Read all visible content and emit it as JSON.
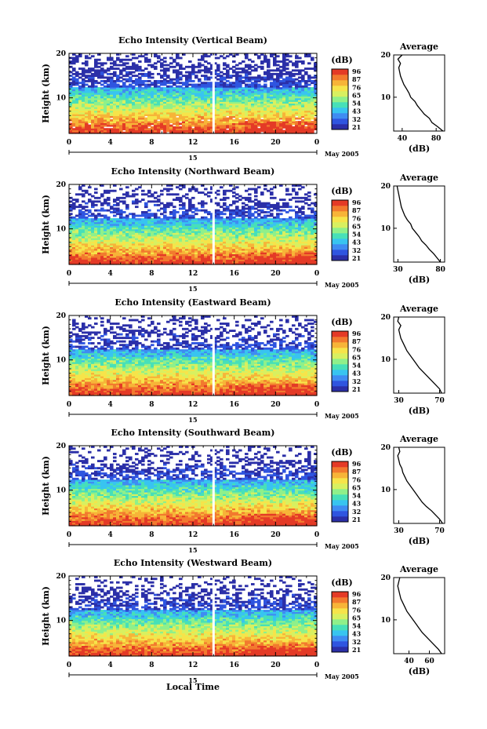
{
  "figure": {
    "xlabel": "Local Time",
    "date_label": "May 2005",
    "day_label": "15",
    "ylabel": "Height (km)",
    "avg_title": "Average",
    "avg_unit": "(dB)",
    "cb_unit": "(dB)"
  },
  "chart_data": [
    {
      "type": "heatmap",
      "title": "Echo Intensity (Vertical Beam)",
      "xlabel": "Local Time",
      "ylabel": "Height (km)",
      "x_ticks": [
        "0",
        "4",
        "8",
        "12",
        "16",
        "20",
        "0"
      ],
      "y_ticks": [
        "10",
        "20"
      ],
      "xlim": [
        0,
        24
      ],
      "ylim": [
        2,
        20
      ],
      "colorbar": {
        "label": "(dB)",
        "ticks": [
          "96",
          "87",
          "76",
          "65",
          "54",
          "43",
          "32",
          "21"
        ]
      },
      "data_gap_hour": 14,
      "average_profile": {
        "title": "Average",
        "xlabel": "(dB)",
        "x_ticks": [
          "40",
          "80"
        ],
        "y_ticks": [
          "10",
          "20"
        ],
        "xlim": [
          30,
          90
        ],
        "heights": [
          2,
          3,
          4,
          5,
          6,
          7,
          8,
          9,
          10,
          11,
          12,
          13,
          14,
          15,
          16,
          17,
          18,
          19,
          20
        ],
        "values": [
          88,
          82,
          75,
          72,
          66,
          62,
          58,
          55,
          50,
          48,
          45,
          42,
          40,
          38,
          37,
          36,
          38,
          35,
          40
        ]
      }
    },
    {
      "type": "heatmap",
      "title": "Echo Intensity (Northward Beam)",
      "xlabel": "Local Time",
      "ylabel": "Height (km)",
      "x_ticks": [
        "0",
        "4",
        "8",
        "12",
        "16",
        "20",
        "0"
      ],
      "y_ticks": [
        "10",
        "20"
      ],
      "xlim": [
        0,
        24
      ],
      "ylim": [
        2,
        20
      ],
      "colorbar": {
        "label": "(dB)",
        "ticks": [
          "96",
          "87",
          "76",
          "65",
          "54",
          "43",
          "32",
          "21"
        ]
      },
      "data_gap_hour": 14,
      "average_profile": {
        "title": "Average",
        "xlabel": "(dB)",
        "x_ticks": [
          "30",
          "80"
        ],
        "y_ticks": [
          "10",
          "20"
        ],
        "xlim": [
          25,
          85
        ],
        "heights": [
          2,
          3,
          4,
          5,
          6,
          7,
          8,
          9,
          10,
          11,
          12,
          13,
          14,
          15,
          16,
          17,
          18,
          19,
          20
        ],
        "values": [
          80,
          76,
          72,
          67,
          63,
          58,
          55,
          51,
          47,
          45,
          41,
          38,
          36,
          34,
          33,
          32,
          31,
          30,
          29
        ]
      }
    },
    {
      "type": "heatmap",
      "title": "Echo Intensity (Eastward Beam)",
      "xlabel": "Local Time",
      "ylabel": "Height (km)",
      "x_ticks": [
        "0",
        "4",
        "8",
        "12",
        "16",
        "20",
        "0"
      ],
      "y_ticks": [
        "10",
        "20"
      ],
      "xlim": [
        0,
        24
      ],
      "ylim": [
        2,
        20
      ],
      "colorbar": {
        "label": "(dB)",
        "ticks": [
          "96",
          "87",
          "76",
          "65",
          "54",
          "43",
          "32",
          "21"
        ]
      },
      "data_gap_hour": 14,
      "average_profile": {
        "title": "Average",
        "xlabel": "(dB)",
        "x_ticks": [
          "30",
          "70"
        ],
        "y_ticks": [
          "10",
          "20"
        ],
        "xlim": [
          25,
          75
        ],
        "heights": [
          2,
          3,
          4,
          5,
          6,
          7,
          8,
          9,
          10,
          11,
          12,
          13,
          14,
          15,
          16,
          17,
          18,
          19,
          20
        ],
        "values": [
          72,
          70,
          66,
          62,
          58,
          54,
          50,
          47,
          44,
          41,
          38,
          36,
          34,
          32,
          31,
          30,
          32,
          29,
          30
        ]
      }
    },
    {
      "type": "heatmap",
      "title": "Echo Intensity (Southward Beam)",
      "xlabel": "Local Time",
      "ylabel": "Height (km)",
      "x_ticks": [
        "0",
        "4",
        "8",
        "12",
        "16",
        "20",
        "0"
      ],
      "y_ticks": [
        "10",
        "20"
      ],
      "xlim": [
        0,
        24
      ],
      "ylim": [
        2,
        20
      ],
      "colorbar": {
        "label": "(dB)",
        "ticks": [
          "96",
          "87",
          "76",
          "65",
          "54",
          "43",
          "32",
          "21"
        ]
      },
      "data_gap_hour": 14,
      "average_profile": {
        "title": "Average",
        "xlabel": "(dB)",
        "x_ticks": [
          "30",
          "70"
        ],
        "y_ticks": [
          "10",
          "20"
        ],
        "xlim": [
          25,
          75
        ],
        "heights": [
          2,
          3,
          4,
          5,
          6,
          7,
          8,
          9,
          10,
          11,
          12,
          13,
          14,
          15,
          16,
          17,
          18,
          19,
          20
        ],
        "values": [
          73,
          70,
          66,
          62,
          57,
          53,
          50,
          47,
          44,
          41,
          38,
          36,
          34,
          33,
          31,
          30,
          29,
          31,
          30
        ]
      }
    },
    {
      "type": "heatmap",
      "title": "Echo Intensity (Westward Beam)",
      "xlabel": "Local Time",
      "ylabel": "Height (km)",
      "x_ticks": [
        "0",
        "4",
        "8",
        "12",
        "16",
        "20",
        "0"
      ],
      "y_ticks": [
        "10",
        "20"
      ],
      "xlim": [
        0,
        24
      ],
      "ylim": [
        2,
        20
      ],
      "colorbar": {
        "label": "(dB)",
        "ticks": [
          "96",
          "87",
          "76",
          "65",
          "54",
          "43",
          "32",
          "21"
        ]
      },
      "data_gap_hour": 14,
      "average_profile": {
        "title": "Average",
        "xlabel": "(dB)",
        "x_ticks": [
          "40",
          "60"
        ],
        "y_ticks": [
          "10",
          "20"
        ],
        "xlim": [
          25,
          75
        ],
        "heights": [
          2,
          3,
          4,
          5,
          6,
          7,
          8,
          9,
          10,
          11,
          12,
          13,
          14,
          15,
          16,
          17,
          18,
          19,
          20
        ],
        "values": [
          72,
          69,
          65,
          61,
          57,
          53,
          50,
          47,
          44,
          41,
          38,
          36,
          34,
          32,
          31,
          30,
          29,
          30,
          31
        ]
      }
    }
  ],
  "colormap": [
    "#2b2fa8",
    "#2f55e0",
    "#3f8cf2",
    "#38c4f0",
    "#47e0b8",
    "#8ff08a",
    "#d8f060",
    "#f6e44a",
    "#f7b438",
    "#f27a2e",
    "#e43a26"
  ]
}
